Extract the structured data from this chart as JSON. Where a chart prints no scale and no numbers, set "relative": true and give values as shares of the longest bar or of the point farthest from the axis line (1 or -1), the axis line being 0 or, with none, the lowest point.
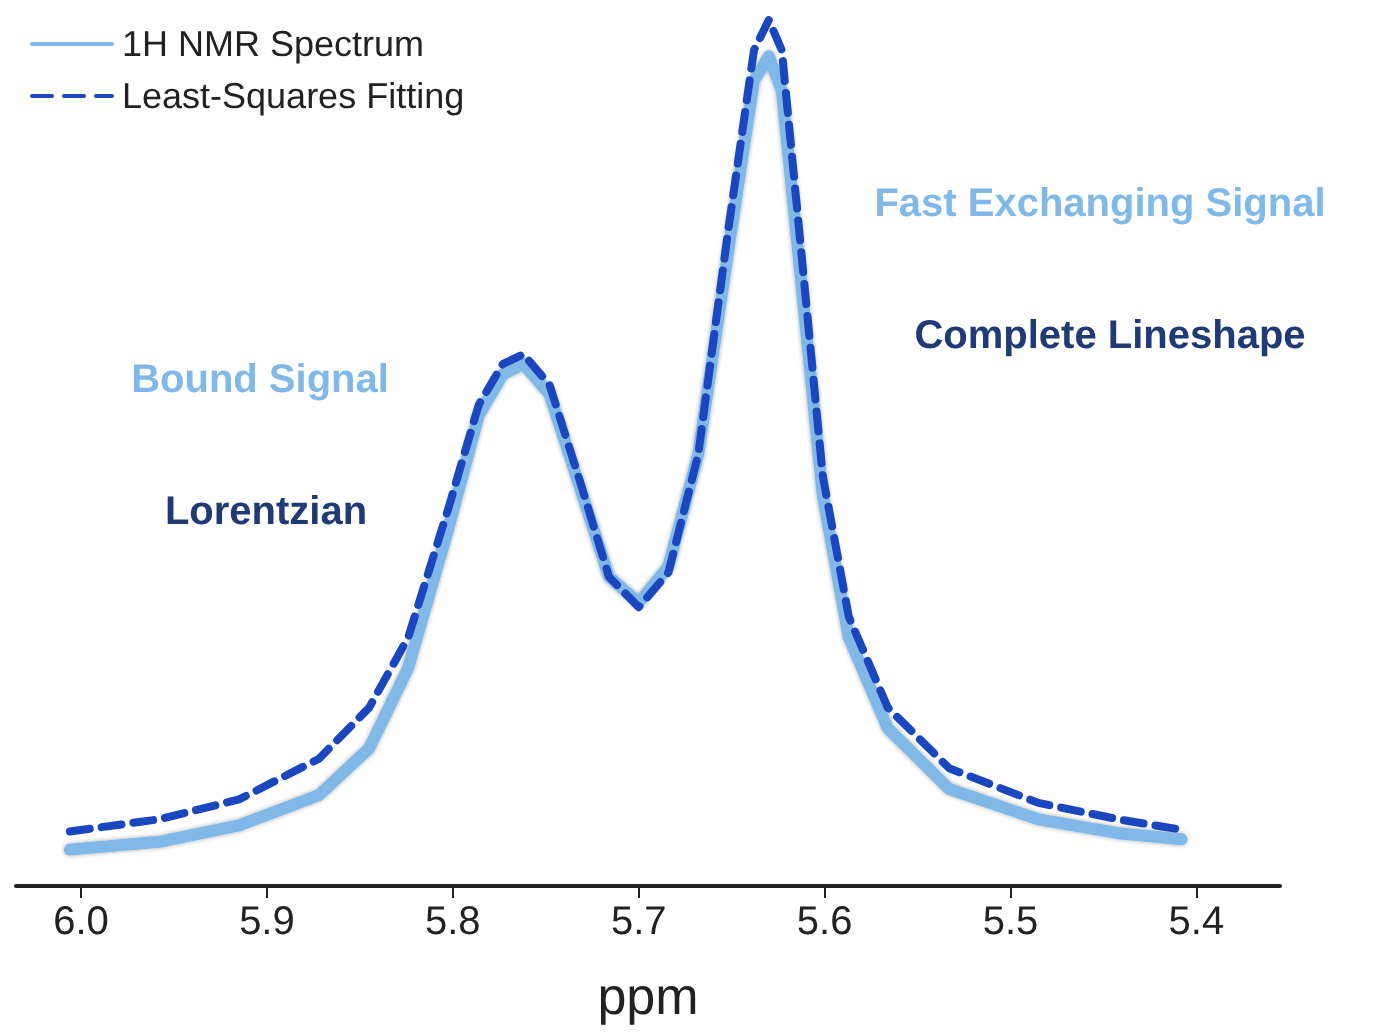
{
  "chart_data": {
    "type": "line",
    "relative": true,
    "xlabel": "ppm",
    "xlim": [
      6.035,
      5.355
    ],
    "xticks": [
      {
        "value": 6.0,
        "label": "6.0"
      },
      5.9,
      5.8,
      5.7,
      5.6,
      5.5,
      5.4
    ],
    "grid": false,
    "legend": "top left",
    "marker": "none",
    "x": [
      6.006,
      5.958,
      5.915,
      5.872,
      5.845,
      5.824,
      5.802,
      5.786,
      5.773,
      5.762,
      5.748,
      5.732,
      5.716,
      5.7,
      5.684,
      5.668,
      5.652,
      5.638,
      5.63,
      5.623,
      5.612,
      5.601,
      5.587,
      5.566,
      5.533,
      5.485,
      5.442,
      5.408
    ],
    "series": [
      {
        "name": "1H NMR Spectrum",
        "color": "#80b8e8",
        "line_style": "solid",
        "values": [
          0.042,
          0.051,
          0.07,
          0.105,
          0.159,
          0.252,
          0.416,
          0.544,
          0.591,
          0.603,
          0.568,
          0.463,
          0.357,
          0.327,
          0.369,
          0.498,
          0.731,
          0.93,
          0.958,
          0.918,
          0.685,
          0.451,
          0.287,
          0.182,
          0.112,
          0.077,
          0.061,
          0.054
        ]
      },
      {
        "name": "Least-Squares Fitting",
        "color": "#1a47c0",
        "line_style": "dashed",
        "values": [
          0.063,
          0.077,
          0.1,
          0.147,
          0.206,
          0.287,
          0.439,
          0.556,
          0.603,
          0.614,
          0.579,
          0.47,
          0.357,
          0.322,
          0.362,
          0.498,
          0.755,
          0.965,
          1,
          0.965,
          0.72,
          0.474,
          0.311,
          0.206,
          0.136,
          0.096,
          0.077,
          0.065
        ]
      }
    ],
    "annotations": [
      "Bound Signal",
      "Lorentzian",
      "Fast Exchanging Signal",
      "Complete Lineshape"
    ]
  }
}
